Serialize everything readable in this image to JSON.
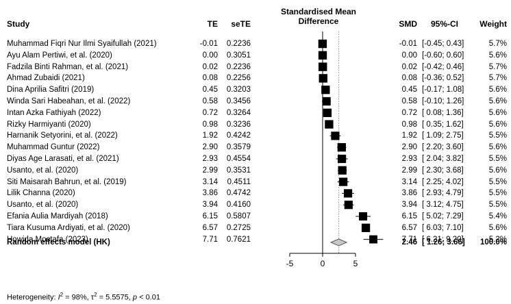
{
  "header": {
    "study": "Study",
    "te": "TE",
    "sete": "seTE",
    "plot_title_1": "Standardised Mean",
    "plot_title_2": "Difference",
    "smd": "SMD",
    "ci": "95%-CI",
    "weight": "Weight"
  },
  "chart_data": {
    "type": "forest",
    "xlim": [
      -5,
      10
    ],
    "ticks": [
      "-5",
      "0",
      "5"
    ],
    "tick_values": [
      -5,
      0,
      5
    ],
    "studies": [
      {
        "name": "Muhammad Fiqri Nur Ilmi Syaifullah (2021)",
        "te": "-0.01",
        "sete": "0.2236",
        "smd": "-0.01",
        "ci": "[-0.45; 0.43]",
        "weight": "5.7%",
        "est": -0.01,
        "lo": -0.45,
        "hi": 0.43,
        "w": 5.7
      },
      {
        "name": "Ayu Alam Pertiwi, et al. (2020)",
        "te": "0.00",
        "sete": "0.3051",
        "smd": "0.00",
        "ci": "[-0.60; 0.60]",
        "weight": "5.6%",
        "est": 0.0,
        "lo": -0.6,
        "hi": 0.6,
        "w": 5.6
      },
      {
        "name": "Fadzila Binti Rahman, et al. (2021)",
        "te": "0.02",
        "sete": "0.2236",
        "smd": "0.02",
        "ci": "[-0.42; 0.46]",
        "weight": "5.7%",
        "est": 0.02,
        "lo": -0.42,
        "hi": 0.46,
        "w": 5.7
      },
      {
        "name": "Ahmad Zubaidi (2021)",
        "te": "0.08",
        "sete": "0.2256",
        "smd": "0.08",
        "ci": "[-0.36; 0.52]",
        "weight": "5.7%",
        "est": 0.08,
        "lo": -0.36,
        "hi": 0.52,
        "w": 5.7
      },
      {
        "name": "Dina Aprilia Safitri (2019)",
        "te": "0.45",
        "sete": "0.3203",
        "smd": "0.45",
        "ci": "[-0.17; 1.08]",
        "weight": "5.6%",
        "est": 0.45,
        "lo": -0.17,
        "hi": 1.08,
        "w": 5.6
      },
      {
        "name": "Winda Sari Habeahan, et al. (2022)",
        "te": "0.58",
        "sete": "0.3456",
        "smd": "0.58",
        "ci": "[-0.10; 1.26]",
        "weight": "5.6%",
        "est": 0.58,
        "lo": -0.1,
        "hi": 1.26,
        "w": 5.6
      },
      {
        "name": "Intan Azka Fathiyah (2022)",
        "te": "0.72",
        "sete": "0.3264",
        "smd": "0.72",
        "ci": "[ 0.08; 1.36]",
        "weight": "5.6%",
        "est": 0.72,
        "lo": 0.08,
        "hi": 1.36,
        "w": 5.6
      },
      {
        "name": "Rizky Harmiyanti (2020)",
        "te": "0.98",
        "sete": "0.3236",
        "smd": "0.98",
        "ci": "[ 0.35; 1.62]",
        "weight": "5.6%",
        "est": 0.98,
        "lo": 0.35,
        "hi": 1.62,
        "w": 5.6
      },
      {
        "name": "Harnanik Setyorini, et al. (2022)",
        "te": "1.92",
        "sete": "0.4242",
        "smd": "1.92",
        "ci": "[ 1.09; 2.75]",
        "weight": "5.5%",
        "est": 1.92,
        "lo": 1.09,
        "hi": 2.75,
        "w": 5.5
      },
      {
        "name": "Muhammad Guntur (2022)",
        "te": "2.90",
        "sete": "0.3579",
        "smd": "2.90",
        "ci": "[ 2.20; 3.60]",
        "weight": "5.6%",
        "est": 2.9,
        "lo": 2.2,
        "hi": 3.6,
        "w": 5.6
      },
      {
        "name": "Diyas Age Larasati, et al. (2021)",
        "te": "2.93",
        "sete": "0.4554",
        "smd": "2.93",
        "ci": "[ 2.04; 3.82]",
        "weight": "5.5%",
        "est": 2.93,
        "lo": 2.04,
        "hi": 3.82,
        "w": 5.5
      },
      {
        "name": "Usanto, et al. (2020)",
        "te": "2.99",
        "sete": "0.3531",
        "smd": "2.99",
        "ci": "[ 2.30; 3.68]",
        "weight": "5.6%",
        "est": 2.99,
        "lo": 2.3,
        "hi": 3.68,
        "w": 5.6
      },
      {
        "name": "Siti Maisarah Bahrun, et al. (2019)",
        "te": "3.14",
        "sete": "0.4511",
        "smd": "3.14",
        "ci": "[ 2.25; 4.02]",
        "weight": "5.5%",
        "est": 3.14,
        "lo": 2.25,
        "hi": 4.02,
        "w": 5.5
      },
      {
        "name": "Lilik Channa (2020)",
        "te": "3.86",
        "sete": "0.4742",
        "smd": "3.86",
        "ci": "[ 2.93; 4.79]",
        "weight": "5.5%",
        "est": 3.86,
        "lo": 2.93,
        "hi": 4.79,
        "w": 5.5
      },
      {
        "name": "Usanto, et al. (2020)",
        "te": "3.94",
        "sete": "0.4160",
        "smd": "3.94",
        "ci": "[ 3.12; 4.75]",
        "weight": "5.5%",
        "est": 3.94,
        "lo": 3.12,
        "hi": 4.75,
        "w": 5.5
      },
      {
        "name": "Efania Aulia Mardiyah (2018)",
        "te": "6.15",
        "sete": "0.5807",
        "smd": "6.15",
        "ci": "[ 5.02; 7.29]",
        "weight": "5.4%",
        "est": 6.15,
        "lo": 5.02,
        "hi": 7.29,
        "w": 5.4
      },
      {
        "name": "Tiara Kusuma Ardiyati, et al. (2020)",
        "te": "6.57",
        "sete": "0.2725",
        "smd": "6.57",
        "ci": "[ 6.03; 7.10]",
        "weight": "5.6%",
        "est": 6.57,
        "lo": 6.03,
        "hi": 7.1,
        "w": 5.6
      },
      {
        "name": "Howida Mostafa (2023)",
        "te": "7.71",
        "sete": "0.7621",
        "smd": "7.71",
        "ci": "[ 6.21; 9.20]",
        "weight": "5.2%",
        "est": 7.71,
        "lo": 6.21,
        "hi": 9.2,
        "w": 5.2
      }
    ],
    "pooled": {
      "name": "Random effects model (HK)",
      "smd": "2.46",
      "ci": "[ 1.26; 3.66]",
      "weight": "100.0%",
      "est": 2.46,
      "lo": 1.26,
      "hi": 3.66
    },
    "heterogeneity_prefix": "Heterogeneity: ",
    "heterogeneity_i2": "I",
    "heterogeneity_i2_sup": "2",
    "heterogeneity_i2_val": " = 98%, ",
    "heterogeneity_tau": "τ",
    "heterogeneity_tau_sup": "2",
    "heterogeneity_tau_val": " = 5.5575, ",
    "heterogeneity_p": "p",
    "heterogeneity_p_val": " < 0.01"
  }
}
